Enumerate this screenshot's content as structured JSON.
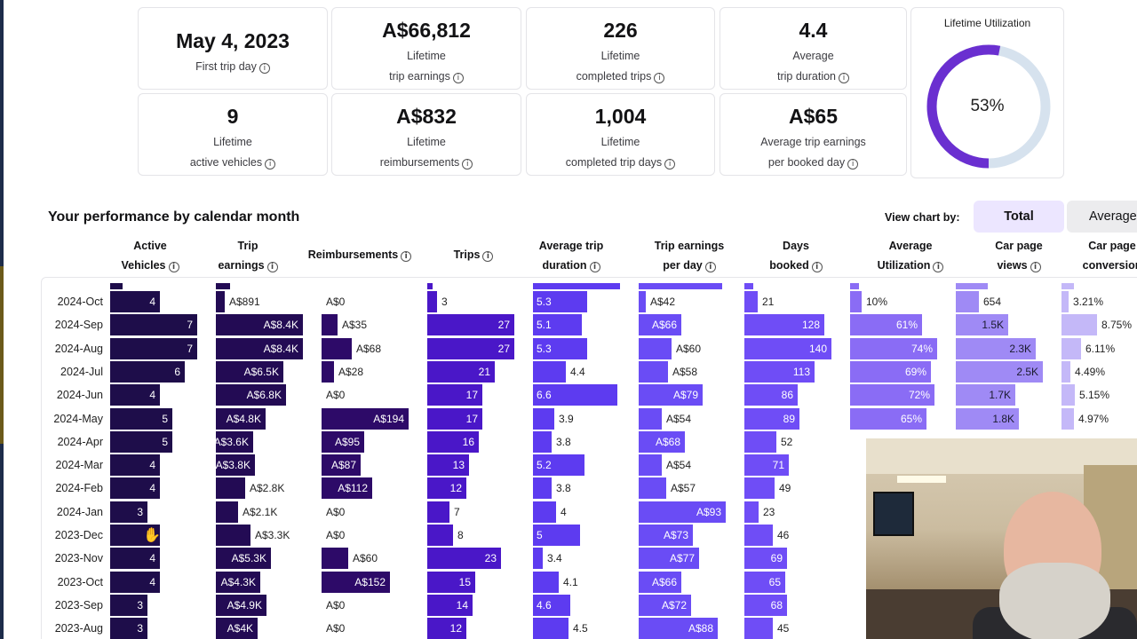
{
  "stats": [
    {
      "value": "May 4, 2023",
      "line1": "First trip day",
      "line2": "",
      "info": "i"
    },
    {
      "value": "A$66,812",
      "line1": "Lifetime",
      "line2": "trip earnings",
      "info": "i"
    },
    {
      "value": "226",
      "line1": "Lifetime",
      "line2": "completed trips",
      "info": "i"
    },
    {
      "value": "4.4",
      "line1": "Average",
      "line2": "trip duration",
      "info": "i"
    },
    {
      "value": "9",
      "line1": "Lifetime",
      "line2": "active vehicles",
      "info": "i"
    },
    {
      "value": "A$832",
      "line1": "Lifetime",
      "line2": "reimbursements",
      "info": "i"
    },
    {
      "value": "1,004",
      "line1": "Lifetime",
      "line2": "completed trip days",
      "info": "i"
    },
    {
      "value": "A$65",
      "line1": "Average trip earnings",
      "line2": "per booked day",
      "info": "i"
    }
  ],
  "utilization": {
    "title": "Lifetime Utilization",
    "percent_label": "53%",
    "percent": 0.53,
    "color_fill": "#6a2fd0",
    "color_track": "#d6e2ee"
  },
  "section": {
    "title": "Your performance by calendar month",
    "view_by_label": "View chart by:",
    "total_label": "Total",
    "average_label": "Average"
  },
  "columns": [
    {
      "l1": "Active",
      "l2": "Vehicles",
      "info": true
    },
    {
      "l1": "Trip",
      "l2": "earnings",
      "info": true
    },
    {
      "l1": "Reimbursements",
      "l2": "",
      "info": true
    },
    {
      "l1": "Trips",
      "l2": "",
      "info": true
    },
    {
      "l1": "Average trip",
      "l2": "duration",
      "info": true
    },
    {
      "l1": "Trip earnings",
      "l2": "per day",
      "info": true
    },
    {
      "l1": "Days",
      "l2": "booked",
      "info": true
    },
    {
      "l1": "Average",
      "l2": "Utilization",
      "info": true
    },
    {
      "l1": "Car page",
      "l2": "views",
      "info": true
    },
    {
      "l1": "Car page",
      "l2": "conversion",
      "info": false
    }
  ],
  "colors": [
    "#1e0d4a",
    "#230b54",
    "#2d0a68",
    "#4a17c8",
    "#5d3bf0",
    "#6a4cf5",
    "#6f4df6",
    "#8a6cf5",
    "#9f8af5",
    "#c4b8f8"
  ],
  "rows": [
    {
      "month": "2024-Oct",
      "cells": [
        "4",
        "A$891",
        "A$0",
        "3",
        "5.3",
        "A$42",
        "21",
        "10%",
        "654",
        "3.21%"
      ],
      "vals": [
        4,
        891,
        0,
        3,
        5.3,
        42,
        21,
        10,
        654,
        3.21
      ]
    },
    {
      "month": "2024-Sep",
      "cells": [
        "7",
        "A$8.4K",
        "A$35",
        "27",
        "5.1",
        "A$66",
        "128",
        "61%",
        "1.5K",
        "8.75%"
      ],
      "vals": [
        7,
        8400,
        35,
        27,
        5.1,
        66,
        128,
        61,
        1500,
        8.75
      ]
    },
    {
      "month": "2024-Aug",
      "cells": [
        "7",
        "A$8.4K",
        "A$68",
        "27",
        "5.3",
        "A$60",
        "140",
        "74%",
        "2.3K",
        "6.11%"
      ],
      "vals": [
        7,
        8400,
        68,
        27,
        5.3,
        60,
        140,
        74,
        2300,
        6.11
      ]
    },
    {
      "month": "2024-Jul",
      "cells": [
        "6",
        "A$6.5K",
        "A$28",
        "21",
        "4.4",
        "A$58",
        "113",
        "69%",
        "2.5K",
        "4.49%"
      ],
      "vals": [
        6,
        6500,
        28,
        21,
        4.4,
        58,
        113,
        69,
        2500,
        4.49
      ]
    },
    {
      "month": "2024-Jun",
      "cells": [
        "4",
        "A$6.8K",
        "A$0",
        "17",
        "6.6",
        "A$79",
        "86",
        "72%",
        "1.7K",
        "5.15%"
      ],
      "vals": [
        4,
        6800,
        0,
        17,
        6.6,
        79,
        86,
        72,
        1700,
        5.15
      ]
    },
    {
      "month": "2024-May",
      "cells": [
        "5",
        "A$4.8K",
        "A$194",
        "17",
        "3.9",
        "A$54",
        "89",
        "65%",
        "1.8K",
        "4.97%"
      ],
      "vals": [
        5,
        4800,
        194,
        17,
        3.9,
        54,
        89,
        65,
        1800,
        4.97
      ]
    },
    {
      "month": "2024-Apr",
      "cells": [
        "5",
        "A$3.6K",
        "A$95",
        "16",
        "3.8",
        "A$68",
        "52",
        "",
        "",
        ""
      ],
      "vals": [
        5,
        3600,
        95,
        16,
        3.8,
        68,
        52,
        0,
        0,
        0
      ]
    },
    {
      "month": "2024-Mar",
      "cells": [
        "4",
        "A$3.8K",
        "A$87",
        "13",
        "5.2",
        "A$54",
        "71",
        "",
        "",
        ""
      ],
      "vals": [
        4,
        3800,
        87,
        13,
        5.2,
        54,
        71,
        0,
        0,
        0
      ]
    },
    {
      "month": "2024-Feb",
      "cells": [
        "4",
        "A$2.8K",
        "A$112",
        "12",
        "3.8",
        "A$57",
        "49",
        "",
        "",
        ""
      ],
      "vals": [
        4,
        2800,
        112,
        12,
        3.8,
        57,
        49,
        0,
        0,
        0
      ]
    },
    {
      "month": "2024-Jan",
      "cells": [
        "3",
        "A$2.1K",
        "A$0",
        "7",
        "4",
        "A$93",
        "23",
        "",
        "",
        ""
      ],
      "vals": [
        3,
        2100,
        0,
        7,
        4,
        93,
        23,
        0,
        0,
        0
      ]
    },
    {
      "month": "2023-Dec",
      "cells": [
        "4",
        "A$3.3K",
        "A$0",
        "8",
        "5",
        "A$73",
        "46",
        "",
        "",
        ""
      ],
      "vals": [
        4,
        3300,
        0,
        8,
        5,
        73,
        46,
        0,
        0,
        0
      ]
    },
    {
      "month": "2023-Nov",
      "cells": [
        "4",
        "A$5.3K",
        "A$60",
        "23",
        "3.4",
        "A$77",
        "69",
        "",
        "",
        ""
      ],
      "vals": [
        4,
        5300,
        60,
        23,
        3.4,
        77,
        69,
        0,
        0,
        0
      ]
    },
    {
      "month": "2023-Oct",
      "cells": [
        "4",
        "A$4.3K",
        "A$152",
        "15",
        "4.1",
        "A$66",
        "65",
        "",
        "",
        ""
      ],
      "vals": [
        4,
        4300,
        152,
        15,
        4.1,
        66,
        65,
        0,
        0,
        0
      ]
    },
    {
      "month": "2023-Sep",
      "cells": [
        "3",
        "A$4.9K",
        "A$0",
        "14",
        "4.6",
        "A$72",
        "68",
        "",
        "",
        ""
      ],
      "vals": [
        3,
        4900,
        0,
        14,
        4.6,
        72,
        68,
        0,
        0,
        0
      ]
    },
    {
      "month": "2023-Aug",
      "cells": [
        "3",
        "A$4K",
        "A$0",
        "12",
        "4.5",
        "A$88",
        "45",
        "",
        "",
        ""
      ],
      "vals": [
        3,
        4000,
        0,
        12,
        4.5,
        88,
        45,
        0,
        0,
        0
      ]
    }
  ]
}
